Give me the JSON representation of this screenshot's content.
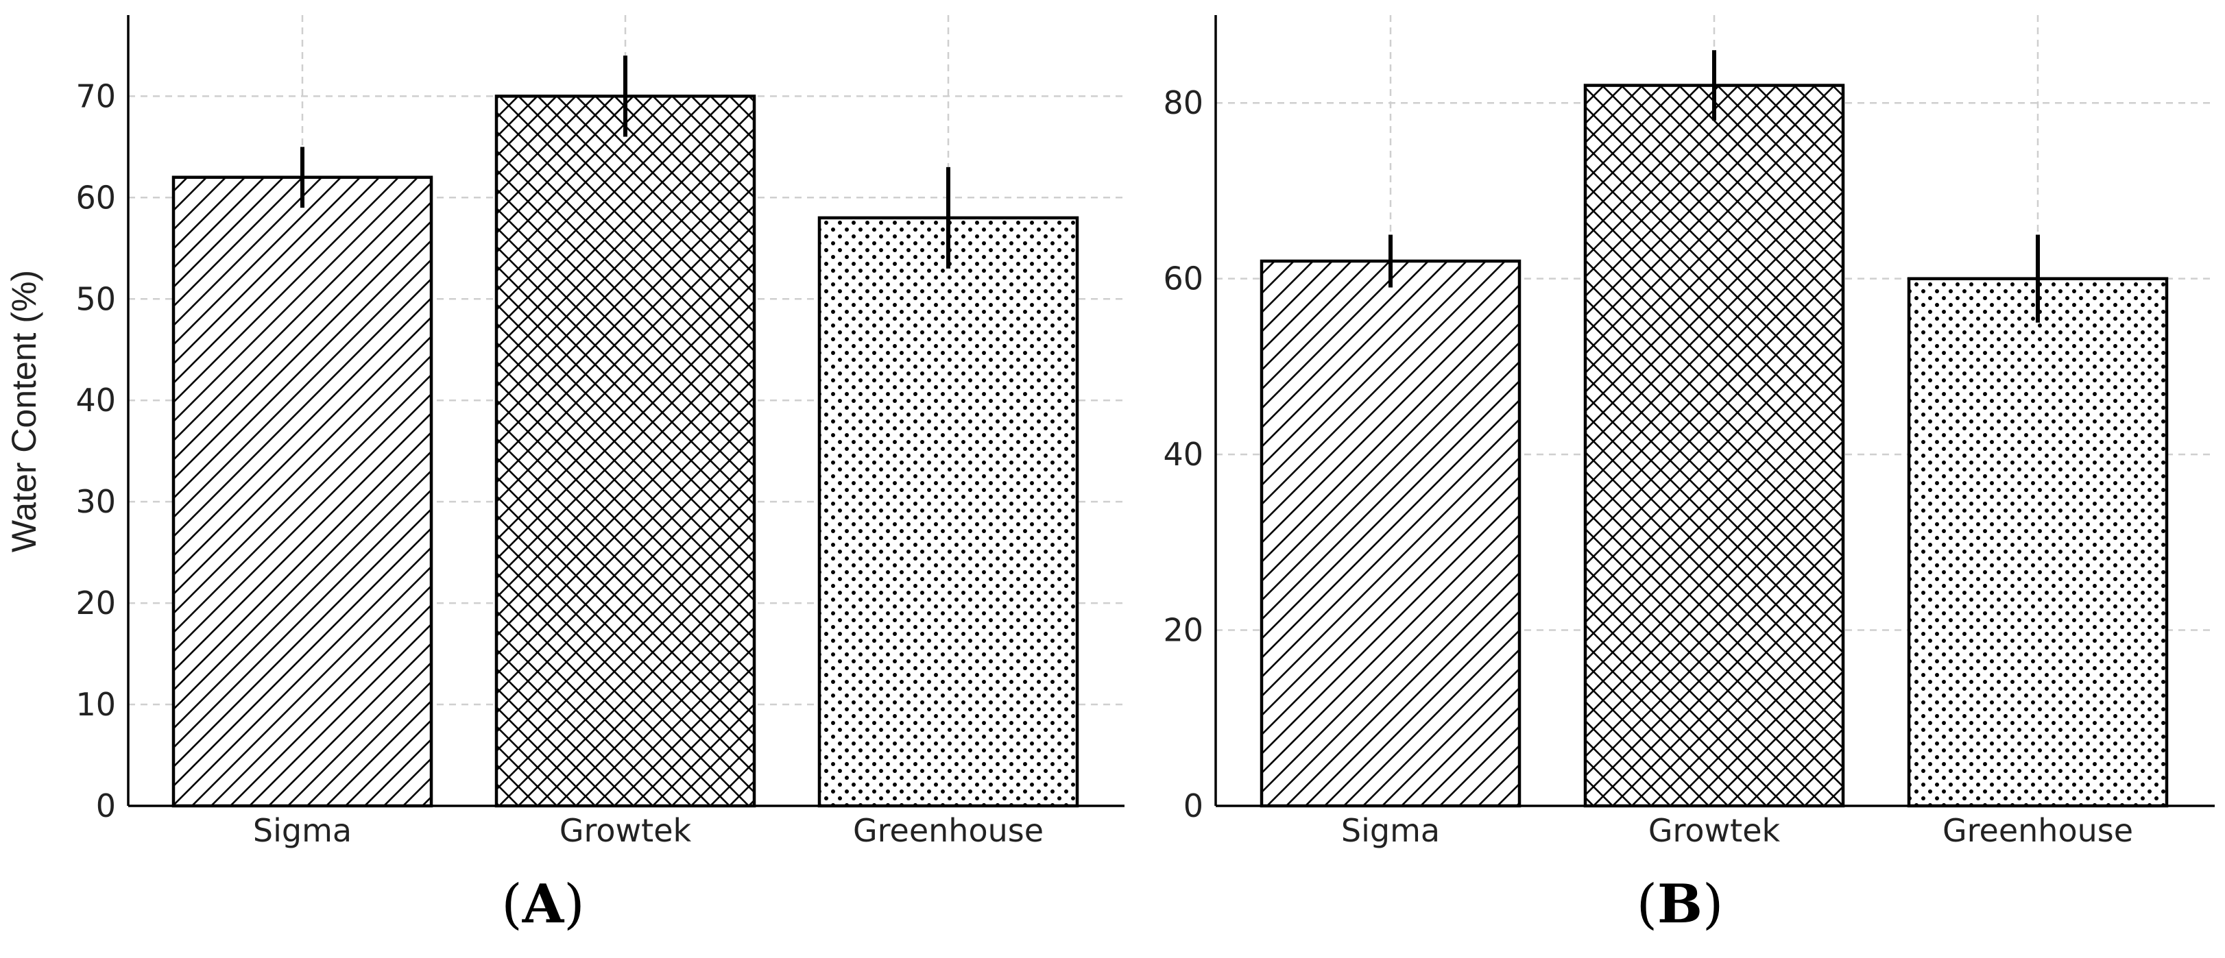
{
  "chart_data": [
    {
      "type": "bar",
      "panel": "(A)",
      "categories": [
        "Sigma",
        "Growtek",
        "Greenhouse"
      ],
      "values": [
        62,
        70,
        58
      ],
      "errors": [
        3,
        4,
        5
      ],
      "patterns": [
        "diagonal-hatch",
        "cross-hatch",
        "dots"
      ],
      "ylabel": "Water Content (%)",
      "xlabel": "",
      "ylim": [
        0,
        78
      ],
      "yticks": [
        0,
        10,
        20,
        30,
        40,
        50,
        60,
        70
      ],
      "grid": true
    },
    {
      "type": "bar",
      "panel": "(B)",
      "categories": [
        "Sigma",
        "Growtek",
        "Greenhouse"
      ],
      "values": [
        62,
        82,
        60
      ],
      "errors": [
        3,
        4,
        5
      ],
      "patterns": [
        "diagonal-hatch",
        "cross-hatch",
        "dots"
      ],
      "ylabel": "",
      "xlabel": "",
      "ylim": [
        0,
        90
      ],
      "yticks": [
        0,
        20,
        40,
        60,
        80
      ],
      "grid": true
    }
  ]
}
